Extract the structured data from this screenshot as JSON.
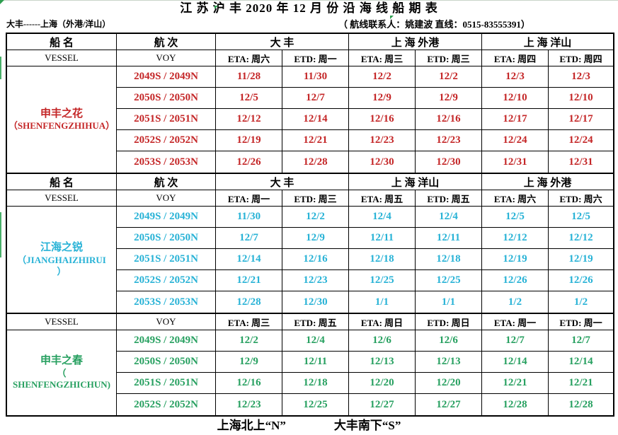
{
  "title": "江 苏 沪 丰 2020 年 12 月 份 沿 海 线 船 期 表",
  "subtitle": {
    "route": "大丰------上海（外港/洋山）",
    "contact": "（ 航线联系人：姚建波 直线：0515-83555391）"
  },
  "header_labels": {
    "vessel_cn": "船  名",
    "voy_cn": "航  次",
    "vessel_en": "VESSEL",
    "voy_en": "VOY"
  },
  "colors": {
    "red": "#c42627",
    "cyan": "#27b2d6",
    "green": "#27a060",
    "marker_green": "#2e9e4f"
  },
  "sections": [
    {
      "color_key": "red",
      "has_cn_header": true,
      "ports": [
        "大 丰",
        "上 海 外港",
        "上 海 洋山"
      ],
      "eta_etd": [
        "ETA: 周六",
        "ETD: 周一",
        "ETA: 周三",
        "ETD: 周三",
        "ETA: 周四",
        "ETD: 周四"
      ],
      "vessel_lines": [
        "申丰之花",
        "（SHENFENGZHIHUA）"
      ],
      "rows": [
        {
          "voy": "2049S / 2049N",
          "dates": [
            "11/28",
            "11/30",
            "12/2",
            "12/2",
            "12/3",
            "12/3"
          ]
        },
        {
          "voy": "2050S / 2050N",
          "dates": [
            "12/5",
            "12/7",
            "12/9",
            "12/9",
            "12/10",
            "12/10"
          ]
        },
        {
          "voy": "2051S / 2051N",
          "dates": [
            "12/12",
            "12/14",
            "12/16",
            "12/16",
            "12/17",
            "12/17"
          ]
        },
        {
          "voy": "2052S / 2052N",
          "dates": [
            "12/19",
            "12/21",
            "12/23",
            "12/23",
            "12/24",
            "12/24"
          ]
        },
        {
          "voy": "2053S / 2053N",
          "dates": [
            "12/26",
            "12/28",
            "12/30",
            "12/30",
            "12/31",
            "12/31"
          ]
        }
      ]
    },
    {
      "color_key": "cyan",
      "has_cn_header": true,
      "ports": [
        "大 丰",
        "上 海 洋山",
        "上 海 外港"
      ],
      "eta_etd": [
        "ETA: 周一",
        "ETD: 周三",
        "ETA: 周五",
        "ETD: 周五",
        "ETA: 周六",
        "ETD: 周六"
      ],
      "vessel_lines": [
        "江海之锐",
        "（JIANGHAIZHIRUI",
        "）"
      ],
      "rows": [
        {
          "voy": "2049S / 2049N",
          "dates": [
            "11/30",
            "12/2",
            "12/4",
            "12/4",
            "12/5",
            "12/5"
          ]
        },
        {
          "voy": "2050S / 2050N",
          "dates": [
            "12/7",
            "12/9",
            "12/11",
            "12/11",
            "12/12",
            "12/12"
          ]
        },
        {
          "voy": "2051S / 2051N",
          "dates": [
            "12/14",
            "12/16",
            "12/18",
            "12/18",
            "12/19",
            "12/19"
          ]
        },
        {
          "voy": "2052S / 2052N",
          "dates": [
            "12/21",
            "12/23",
            "12/25",
            "12/25",
            "12/26",
            "12/26"
          ]
        },
        {
          "voy": "2053S / 2053N",
          "dates": [
            "12/28",
            "12/30",
            "1/1",
            "1/1",
            "1/2",
            "1/2"
          ]
        }
      ]
    },
    {
      "color_key": "green",
      "has_cn_header": false,
      "ports": [],
      "eta_etd": [
        "ETA: 周三",
        "ETD: 周五",
        "ETA: 周日",
        "ETD: 周日",
        "ETA: 周一",
        "ETD: 周一"
      ],
      "vessel_lines": [
        "申丰之春",
        "（",
        "SHENFENGZHICHUN)"
      ],
      "rows": [
        {
          "voy": "2049S / 2049N",
          "dates": [
            "12/2",
            "12/4",
            "12/6",
            "12/6",
            "12/7",
            "12/7"
          ]
        },
        {
          "voy": "2050S / 2050N",
          "dates": [
            "12/9",
            "12/11",
            "12/13",
            "12/13",
            "12/14",
            "12/14"
          ]
        },
        {
          "voy": "2051S / 2051N",
          "dates": [
            "12/16",
            "12/18",
            "12/20",
            "12/20",
            "12/21",
            "12/21"
          ]
        },
        {
          "voy": "2052S / 2052N",
          "dates": [
            "12/23",
            "12/25",
            "12/27",
            "12/27",
            "12/28",
            "12/28"
          ]
        }
      ]
    }
  ],
  "footer": {
    "north": "上海北上“N”",
    "south": "大丰南下“S”"
  }
}
